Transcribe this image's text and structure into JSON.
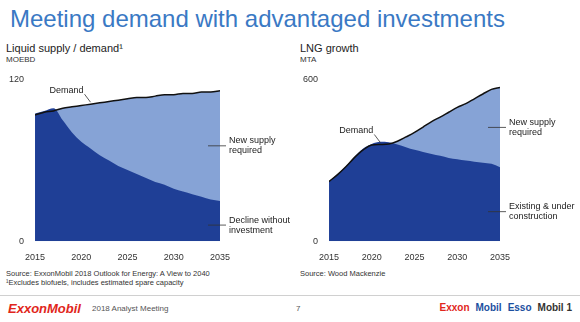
{
  "title": "Meeting demand with advantaged investments",
  "chart_data": [
    {
      "type": "area",
      "title": "Liquid supply / demand¹",
      "y_label": "MOEBD",
      "x": [
        2015,
        2016,
        2017,
        2018,
        2019,
        2020,
        2021,
        2022,
        2023,
        2024,
        2025,
        2026,
        2027,
        2028,
        2029,
        2030,
        2031,
        2032,
        2033,
        2034,
        2035
      ],
      "xlim": [
        2015,
        2035
      ],
      "xticks": [
        2015,
        2020,
        2025,
        2030,
        2035
      ],
      "ylim": [
        0,
        120
      ],
      "yticks": [
        0,
        120
      ],
      "grid": false,
      "series": [
        {
          "name": "Decline without investment",
          "type": "area",
          "color": "#1f3f96",
          "values": [
            95,
            97,
            99,
            90,
            81,
            74,
            69,
            64,
            60,
            56,
            53,
            50,
            47,
            44,
            42,
            39,
            37,
            35,
            33,
            31,
            30
          ]
        },
        {
          "name": "Demand",
          "type": "line",
          "color": "#111111",
          "values": [
            94,
            96,
            97,
            99,
            100,
            101,
            102,
            103,
            104,
            105,
            106,
            107,
            107,
            108,
            109,
            109,
            110,
            110,
            111,
            111,
            112
          ]
        }
      ],
      "annotations": [
        {
          "text": "New supply required",
          "color": "#86a3d6"
        }
      ],
      "notes": [
        "Source: ExxonMobil 2018 Outlook for Energy: A View to 2040",
        "¹Excludes biofuels, includes estimated spare capacity"
      ]
    },
    {
      "type": "area",
      "title": "LNG growth",
      "y_label": "MTA",
      "x": [
        2015,
        2016,
        2017,
        2018,
        2019,
        2020,
        2021,
        2022,
        2023,
        2024,
        2025,
        2026,
        2027,
        2028,
        2029,
        2030,
        2031,
        2032,
        2033,
        2034,
        2035
      ],
      "xlim": [
        2015,
        2035
      ],
      "xticks": [
        2015,
        2020,
        2025,
        2030,
        2035
      ],
      "ylim": [
        0,
        600
      ],
      "yticks": [
        0,
        600
      ],
      "grid": false,
      "series": [
        {
          "name": "Existing & under construction",
          "type": "area",
          "color": "#1f3f96",
          "values": [
            222,
            250,
            280,
            315,
            345,
            362,
            370,
            368,
            360,
            350,
            340,
            332,
            325,
            318,
            310,
            305,
            300,
            296,
            292,
            288,
            275
          ]
        },
        {
          "name": "Demand",
          "type": "line",
          "color": "#111111",
          "values": [
            222,
            248,
            278,
            312,
            340,
            358,
            360,
            362,
            372,
            388,
            405,
            425,
            445,
            462,
            480,
            498,
            512,
            530,
            548,
            565,
            572
          ]
        }
      ],
      "annotations": [
        {
          "text": "New supply required",
          "color": "#86a3d6"
        }
      ],
      "notes": [
        "Source: Wood Mackenzie"
      ]
    }
  ],
  "footer": {
    "brand": "ExxonMobil",
    "event": "2018 Analyst Meeting",
    "page": "7",
    "logos": [
      "Exxon",
      "Mobil",
      "Esso",
      "Mobil 1"
    ]
  }
}
